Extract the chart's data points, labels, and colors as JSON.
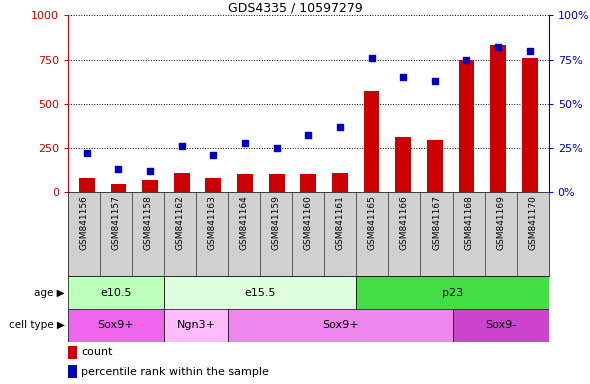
{
  "title": "GDS4335 / 10597279",
  "samples": [
    "GSM841156",
    "GSM841157",
    "GSM841158",
    "GSM841162",
    "GSM841163",
    "GSM841164",
    "GSM841159",
    "GSM841160",
    "GSM841161",
    "GSM841165",
    "GSM841166",
    "GSM841167",
    "GSM841168",
    "GSM841169",
    "GSM841170"
  ],
  "counts": [
    80,
    45,
    70,
    110,
    80,
    100,
    100,
    100,
    110,
    570,
    310,
    295,
    750,
    830,
    760
  ],
  "percentiles": [
    22,
    13,
    12,
    26,
    21,
    28,
    25,
    32,
    37,
    76,
    65,
    63,
    75,
    82,
    80
  ],
  "ylim_left": [
    0,
    1000
  ],
  "ylim_right": [
    0,
    100
  ],
  "yticks_left": [
    0,
    250,
    500,
    750,
    1000
  ],
  "yticks_right": [
    0,
    25,
    50,
    75,
    100
  ],
  "age_groups": [
    {
      "label": "e10.5",
      "start": 0,
      "end": 3,
      "color": "#bbffbb"
    },
    {
      "label": "e15.5",
      "start": 3,
      "end": 9,
      "color": "#ddffdd"
    },
    {
      "label": "p23",
      "start": 9,
      "end": 15,
      "color": "#44dd44"
    }
  ],
  "cell_groups": [
    {
      "label": "Sox9+",
      "start": 0,
      "end": 3,
      "color": "#ee66ee"
    },
    {
      "label": "Ngn3+",
      "start": 3,
      "end": 5,
      "color": "#ffbbff"
    },
    {
      "label": "Sox9+",
      "start": 5,
      "end": 12,
      "color": "#ee88ee"
    },
    {
      "label": "Sox9-",
      "start": 12,
      "end": 15,
      "color": "#cc44cc"
    }
  ],
  "bar_color": "#cc0000",
  "dot_color": "#0000bb",
  "left_axis_color": "#cc0000",
  "right_axis_color": "#0000bb",
  "bg_color": "#ffffff",
  "xtick_bg_color": "#d0d0d0",
  "legend_count_label": "count",
  "legend_pct_label": "percentile rank within the sample"
}
